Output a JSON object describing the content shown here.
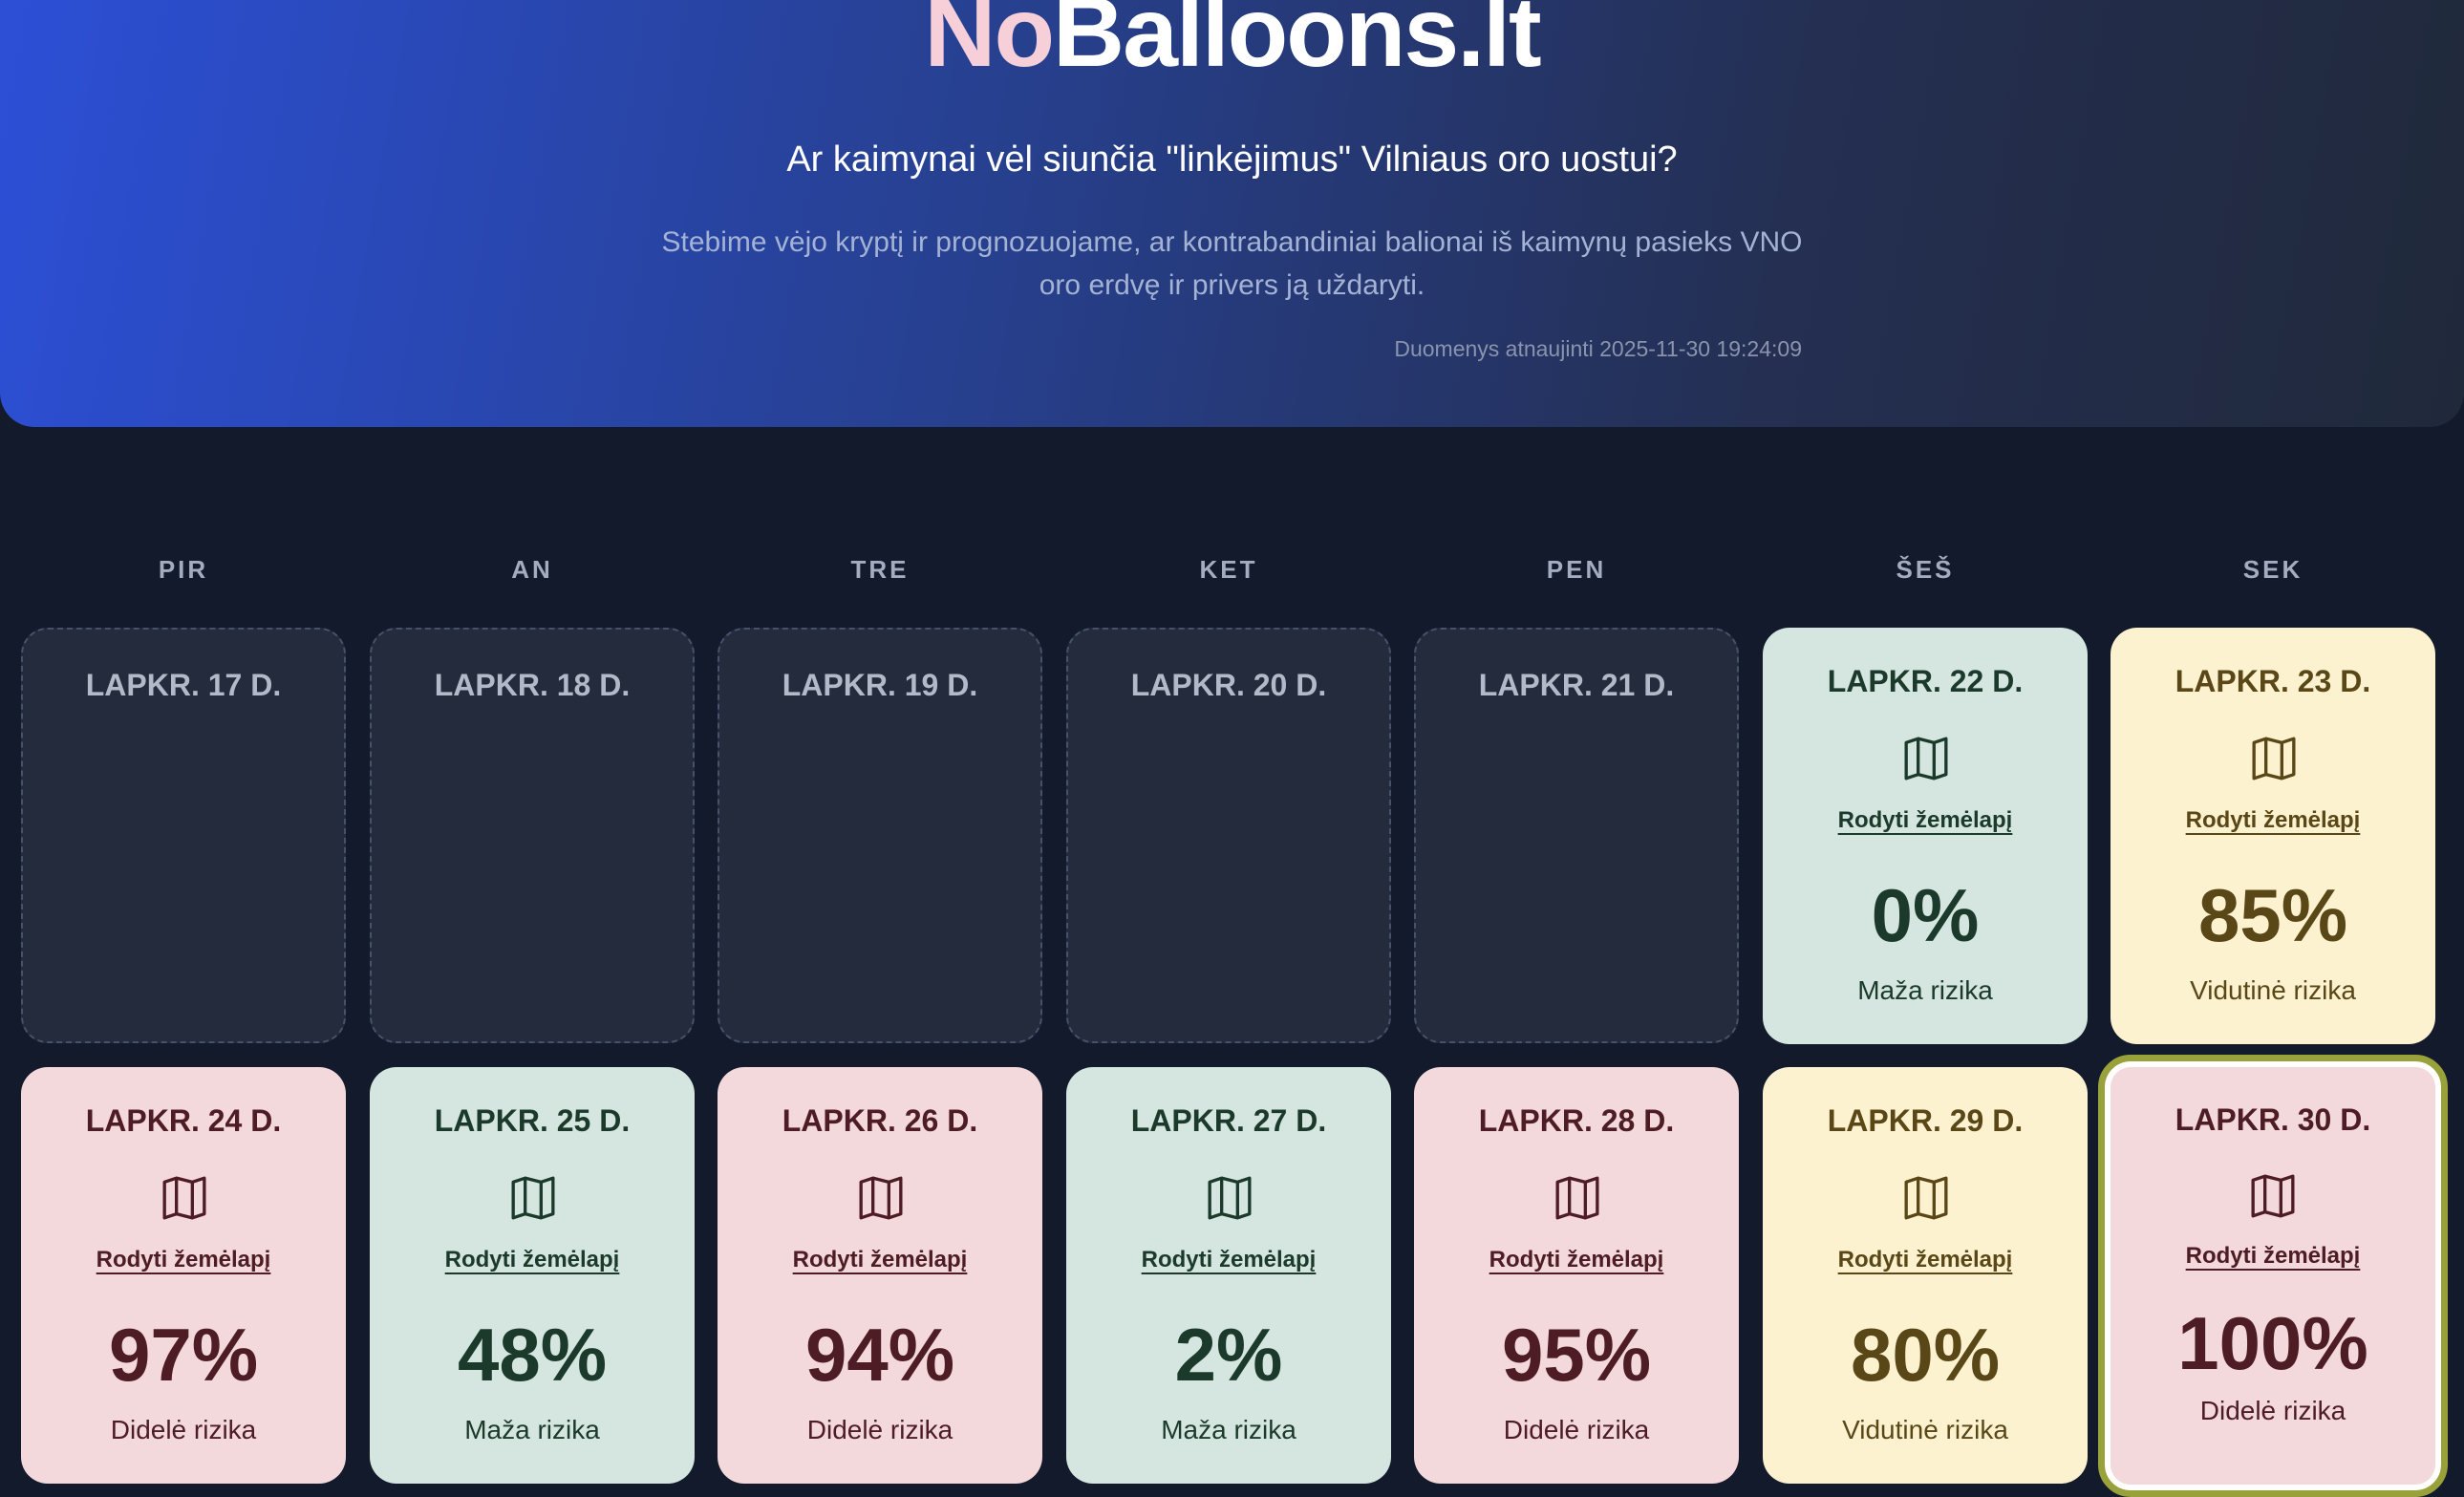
{
  "header": {
    "logo_part1": "No",
    "logo_part2": "Balloons.lt",
    "tagline": "Ar kaimynai vėl siunčia \"linkėjimus\" Vilniaus oro uostui?",
    "description": "Stebime vėjo kryptį ir prognozuojame, ar kontrabandiniai balionai iš kaimynų pasieks VNO oro erdvę ir privers ją uždaryti.",
    "updated": "Duomenys atnaujinti 2025-11-30 19:24:09"
  },
  "weekdays": [
    "PIR",
    "AN",
    "TRE",
    "KET",
    "PEN",
    "ŠEŠ",
    "SEK"
  ],
  "colors": {
    "low": "#d4e6df",
    "medium": "#fdf2cf",
    "high": "#f3d8dc",
    "today_border": "#99a13a",
    "logo_accent": "#f6cfd9"
  },
  "calendar": [
    {
      "date": "LAPKR. 17 D.",
      "empty": true
    },
    {
      "date": "LAPKR. 18 D.",
      "empty": true
    },
    {
      "date": "LAPKR. 19 D.",
      "empty": true
    },
    {
      "date": "LAPKR. 20 D.",
      "empty": true
    },
    {
      "date": "LAPKR. 21 D.",
      "empty": true
    },
    {
      "date": "LAPKR. 22 D.",
      "map_link": "Rodyti žemėlapį",
      "percent": "0%",
      "risk": "Maža rizika",
      "level": "low",
      "icon": "map-icon"
    },
    {
      "date": "LAPKR. 23 D.",
      "map_link": "Rodyti žemėlapį",
      "percent": "85%",
      "risk": "Vidutinė rizika",
      "level": "medium",
      "icon": "map-icon"
    },
    {
      "date": "LAPKR. 24 D.",
      "map_link": "Rodyti žemėlapį",
      "percent": "97%",
      "risk": "Didelė rizika",
      "level": "high",
      "icon": "map-icon"
    },
    {
      "date": "LAPKR. 25 D.",
      "map_link": "Rodyti žemėlapį",
      "percent": "48%",
      "risk": "Maža rizika",
      "level": "low",
      "icon": "map-icon"
    },
    {
      "date": "LAPKR. 26 D.",
      "map_link": "Rodyti žemėlapį",
      "percent": "94%",
      "risk": "Didelė rizika",
      "level": "high",
      "icon": "map-icon"
    },
    {
      "date": "LAPKR. 27 D.",
      "map_link": "Rodyti žemėlapį",
      "percent": "2%",
      "risk": "Maža rizika",
      "level": "low",
      "icon": "map-icon"
    },
    {
      "date": "LAPKR. 28 D.",
      "map_link": "Rodyti žemėlapį",
      "percent": "95%",
      "risk": "Didelė rizika",
      "level": "high",
      "icon": "map-icon"
    },
    {
      "date": "LAPKR. 29 D.",
      "map_link": "Rodyti žemėlapį",
      "percent": "80%",
      "risk": "Vidutinė rizika",
      "level": "medium",
      "icon": "map-icon"
    },
    {
      "date": "LAPKR. 30 D.",
      "map_link": "Rodyti žemėlapį",
      "percent": "100%",
      "risk": "Didelė rizika",
      "level": "high",
      "icon": "map-icon",
      "today": true
    }
  ]
}
